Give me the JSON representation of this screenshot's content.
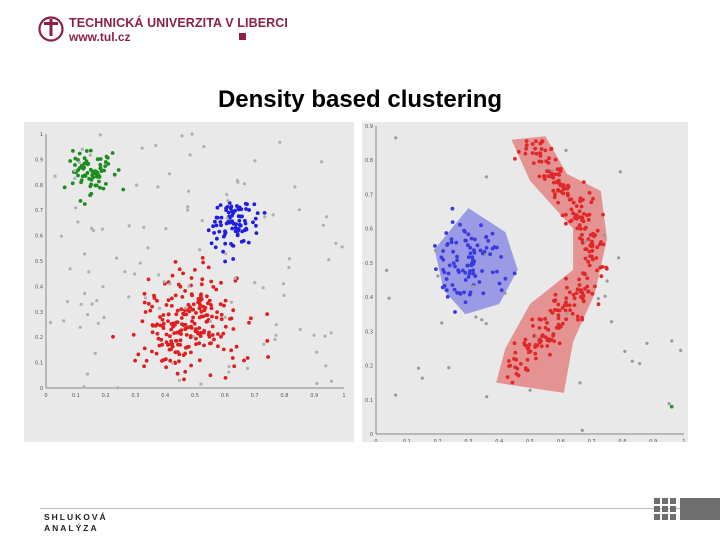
{
  "header": {
    "university_name": "TECHNICKÁ UNIVERZITA V LIBERCI",
    "url": "www.tul.cz",
    "brand_color": "#8c2048",
    "emblem_icon": "university-emblem-icon"
  },
  "slide": {
    "title": "Density based clustering"
  },
  "footer": {
    "line1": "SHLUKOVÁ",
    "line2": "ANALÝZA",
    "corner_icon": "grid-logo-icon"
  },
  "chart_data": [
    {
      "type": "scatter",
      "title": "",
      "xlabel": "",
      "ylabel": "",
      "xlim": [
        0,
        1
      ],
      "ylim": [
        0,
        1
      ],
      "x_ticks": [
        "0",
        "0.1",
        "0.2",
        "0.3",
        "0.4",
        "0.5",
        "0.6",
        "0.7",
        "0.8",
        "0.9",
        "1"
      ],
      "y_ticks": [
        "0",
        "0.1",
        "0.2",
        "0.3",
        "0.4",
        "0.5",
        "0.6",
        "0.7",
        "0.8",
        "0.9",
        "1"
      ],
      "grid": false,
      "series": [
        {
          "name": "cluster-green",
          "color": "#1e8c1e",
          "shape": "blob",
          "center": [
            0.15,
            0.85
          ],
          "spread": [
            0.035,
            0.045
          ],
          "count": 75
        },
        {
          "name": "cluster-blue",
          "color": "#1e1ee0",
          "shape": "blob",
          "center": [
            0.63,
            0.64
          ],
          "spread": [
            0.04,
            0.05
          ],
          "count": 90
        },
        {
          "name": "cluster-red",
          "color": "#e01e1e",
          "shape": "blob",
          "center": [
            0.48,
            0.26
          ],
          "spread": [
            0.085,
            0.1
          ],
          "count": 230
        },
        {
          "name": "noise",
          "color": "#b0b0b0",
          "shape": "uniform",
          "count": 110
        }
      ]
    },
    {
      "type": "scatter",
      "title": "",
      "xlabel": "",
      "ylabel": "",
      "xlim": [
        0,
        1
      ],
      "ylim": [
        0,
        0.9
      ],
      "x_ticks": [
        "0",
        "0.1",
        "0.2",
        "0.3",
        "0.4",
        "0.5",
        "0.6",
        "0.7",
        "0.8",
        "0.9",
        "1"
      ],
      "y_ticks": [
        "0",
        "0.1",
        "0.2",
        "0.3",
        "0.4",
        "0.5",
        "0.6",
        "0.7",
        "0.8",
        "0.9"
      ],
      "grid": false,
      "series": [
        {
          "name": "cluster-blue",
          "color": "#3a3ae0",
          "shape": "blob",
          "center": [
            0.3,
            0.5
          ],
          "spread": [
            0.055,
            0.06
          ],
          "count": 95,
          "hull": [
            [
              0.3,
              0.66
            ],
            [
              0.42,
              0.59
            ],
            [
              0.46,
              0.48
            ],
            [
              0.4,
              0.38
            ],
            [
              0.29,
              0.35
            ],
            [
              0.22,
              0.42
            ],
            [
              0.19,
              0.54
            ]
          ]
        },
        {
          "name": "cluster-red",
          "color": "#e02828",
          "shape": "moon",
          "count": 270,
          "hull": [
            [
              0.44,
              0.86
            ],
            [
              0.55,
              0.87
            ],
            [
              0.62,
              0.76
            ],
            [
              0.73,
              0.71
            ],
            [
              0.75,
              0.57
            ],
            [
              0.71,
              0.41
            ],
            [
              0.64,
              0.27
            ],
            [
              0.61,
              0.12
            ],
            [
              0.39,
              0.15
            ],
            [
              0.42,
              0.25
            ],
            [
              0.5,
              0.38
            ],
            [
              0.64,
              0.48
            ],
            [
              0.64,
              0.6
            ],
            [
              0.5,
              0.74
            ]
          ]
        },
        {
          "name": "noise",
          "color": "#9a9a9a",
          "shape": "uniform",
          "count": 40
        },
        {
          "name": "outlier-green",
          "color": "#1e9c1e",
          "shape": "point",
          "points": [
            [
              0.96,
              0.08
            ]
          ]
        }
      ]
    }
  ]
}
